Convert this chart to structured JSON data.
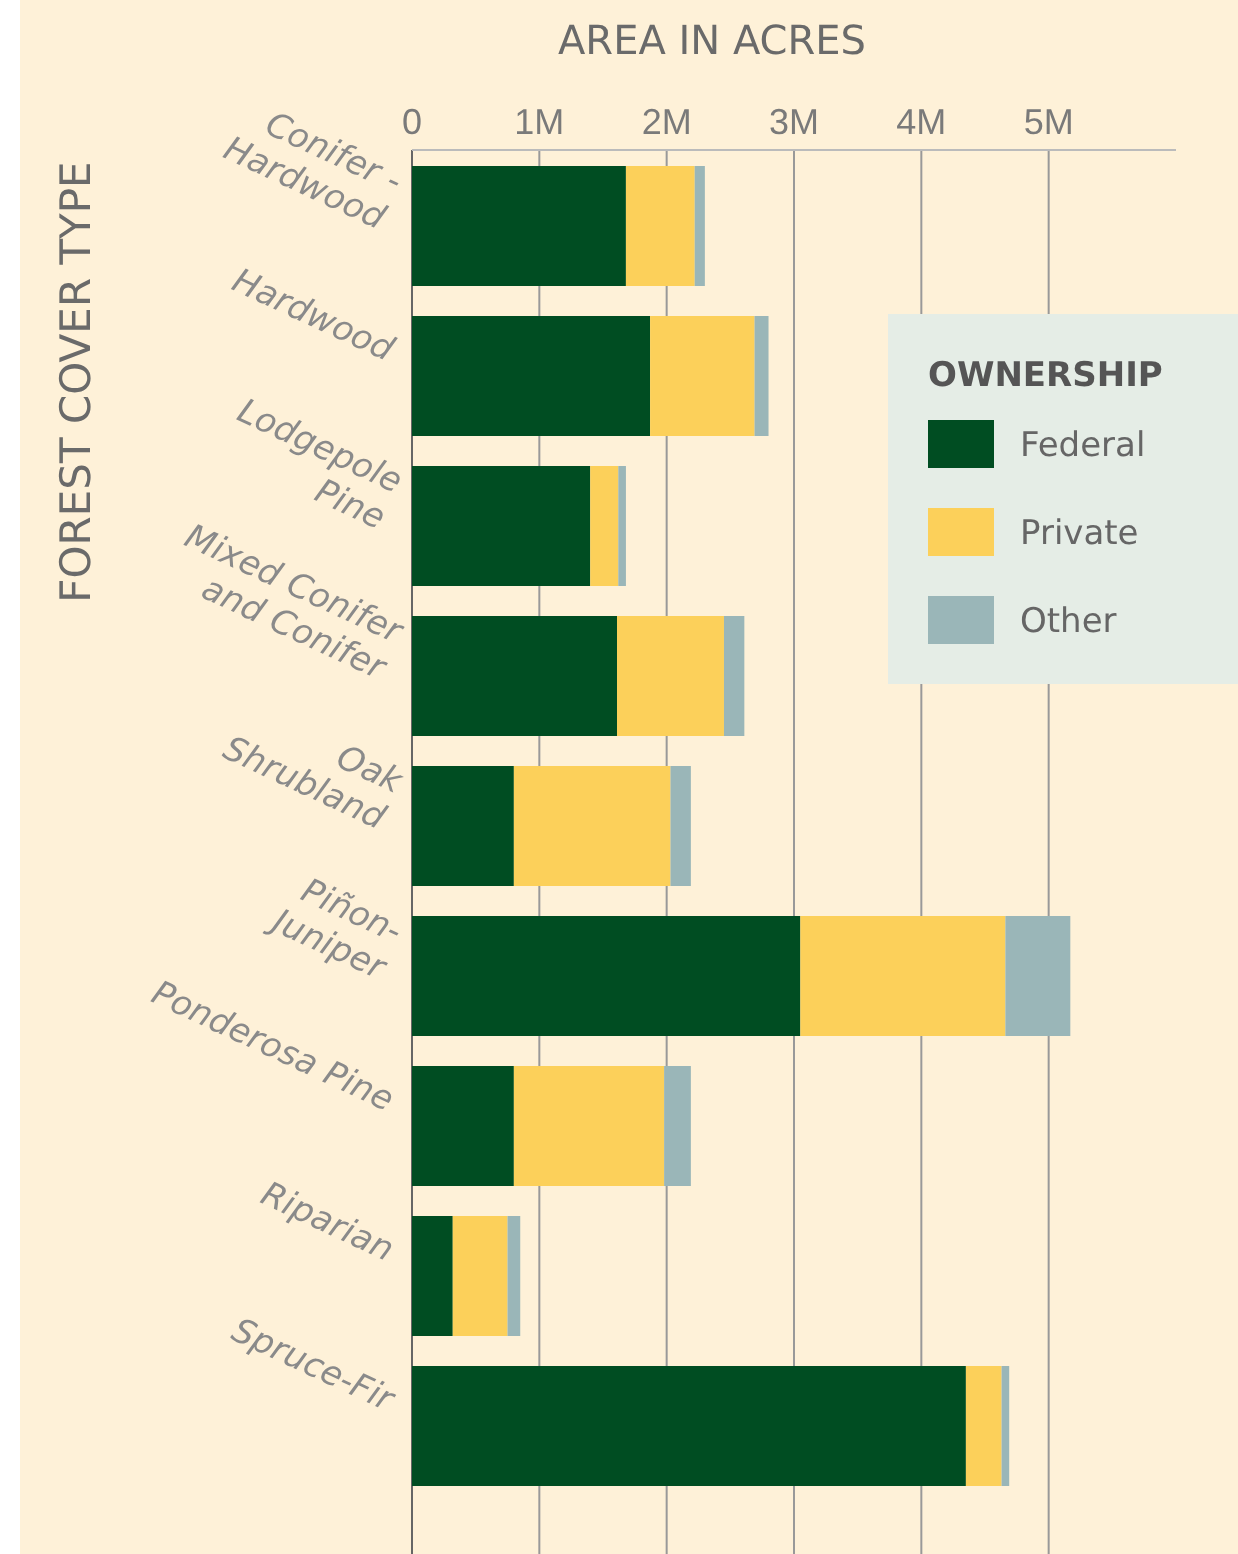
{
  "chart_data": {
    "type": "bar",
    "orientation": "horizontal",
    "stacked": true,
    "xlabel": "AREA IN ACRES",
    "ylabel": "FOREST COVER TYPE",
    "legend_title": "OWNERSHIP",
    "legend": "right",
    "grid": "x",
    "categories": [
      "Conifer -\nHardwood",
      "Hardwood",
      "Lodgepole\nPine",
      "Mixed Conifer\nand Conifer",
      "Oak\nShrubland",
      "Piñon-\nJuniper",
      "Ponderosa Pine",
      "Riparian",
      "Spruce-Fir"
    ],
    "series": [
      {
        "name": "Federal",
        "color": "#004d22",
        "values": [
          1680000,
          1870000,
          1400000,
          1610000,
          800000,
          3050000,
          800000,
          320000,
          4350000
        ]
      },
      {
        "name": "Private",
        "color": "#fcd05a",
        "values": [
          540000,
          820000,
          220000,
          840000,
          1230000,
          1610000,
          1180000,
          430000,
          280000
        ]
      },
      {
        "name": "Other",
        "color": "#9ab6b8",
        "values": [
          80000,
          110000,
          60000,
          160000,
          160000,
          510000,
          210000,
          100000,
          60000
        ]
      }
    ],
    "xlim": [
      0,
      6000000
    ],
    "xticks": [
      0,
      {
        "value": 1000000,
        "label": "1M"
      },
      {
        "value": 2000000,
        "label": "2M"
      },
      {
        "value": 3000000,
        "label": "3M"
      },
      {
        "value": 4000000,
        "label": "4M"
      },
      {
        "value": 5000000,
        "label": "5M"
      }
    ]
  }
}
